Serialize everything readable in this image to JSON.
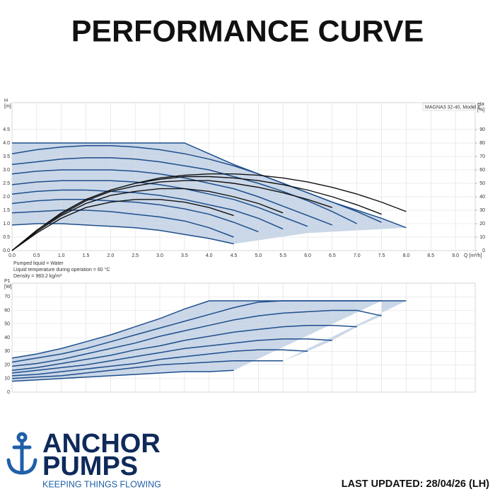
{
  "header": {
    "title": "PERFORMANCE CURVE"
  },
  "logo": {
    "line1": "ANCHOR",
    "line2": "PUMPS",
    "tagline": "KEEPING THINGS FLOWING"
  },
  "footer": {
    "updated": "LAST UPDATED: 28/04/26 (LH)"
  },
  "chart_data": [
    {
      "type": "line",
      "title": "MAGNA3 32-40, Model E",
      "y_label": "H",
      "y_unit": "[m]",
      "y2_label": "eta",
      "y2_unit": "[%]",
      "x_label": "Q [m³/h]",
      "notes": [
        "Pumped liquid = Water",
        "Liquid temperature during operation = 60 °C",
        "Density = 983.2 kg/m³"
      ],
      "xlim": [
        0,
        9.4
      ],
      "xticks": [
        {
          "value": 0,
          "label": "0.0"
        },
        0.5,
        {
          "value": 1,
          "label": "1.0"
        },
        1.5,
        {
          "value": 2,
          "label": "2.0"
        },
        2.5,
        {
          "value": 3,
          "label": "3.0"
        },
        3.5,
        {
          "value": 4,
          "label": "4.0"
        },
        4.5,
        {
          "value": 5,
          "label": "5.0"
        },
        5.5,
        {
          "value": 6,
          "label": "6.0"
        },
        6.5,
        {
          "value": 7,
          "label": "7.0"
        },
        7.5,
        {
          "value": 8,
          "label": "8.0"
        },
        8.5,
        {
          "value": 9,
          "label": "9.0"
        }
      ],
      "ylim": [
        0,
        5.5
      ],
      "yticks": [
        {
          "value": 0,
          "label": "0.0"
        },
        0.5,
        {
          "value": 1,
          "label": "1.0"
        },
        1.5,
        {
          "value": 2,
          "label": "2.0"
        },
        2.5,
        {
          "value": 3,
          "label": "3.0"
        },
        3.5,
        {
          "value": 4,
          "label": "4.0"
        },
        4.5
      ],
      "y2lim": [
        0,
        110
      ],
      "y2ticks": [
        0,
        10,
        20,
        30,
        40,
        50,
        60,
        70,
        80,
        90
      ],
      "grid": true,
      "fill_color": "#c9d7e8",
      "x": [
        0,
        0.5,
        1,
        1.5,
        2,
        2.5,
        3,
        3.5,
        4,
        4.5,
        5,
        5.5,
        6,
        6.5,
        7,
        7.5,
        8
      ],
      "series": [
        {
          "color": "#1f4e8c",
          "values": [
            4.0,
            4.0,
            4.0,
            4.0,
            4.0,
            4.0,
            4.0,
            4.0,
            3.6,
            3.2,
            2.85,
            2.5,
            2.15,
            1.8,
            1.5,
            1.2,
            0.85
          ]
        },
        {
          "color": "#1f4e8c",
          "values": [
            3.6,
            3.75,
            3.85,
            3.9,
            3.9,
            3.85,
            3.75,
            3.6,
            3.4,
            3.15,
            2.85,
            2.5,
            2.15,
            1.8,
            1.45,
            1.05,
            null
          ]
        },
        {
          "color": "#1f4e8c",
          "values": [
            3.2,
            3.3,
            3.4,
            3.45,
            3.45,
            3.4,
            3.3,
            3.15,
            3.0,
            2.75,
            2.5,
            2.2,
            1.85,
            1.45,
            1.0,
            null,
            null
          ]
        },
        {
          "color": "#1f4e8c",
          "values": [
            2.85,
            2.95,
            3.0,
            3.0,
            3.0,
            2.95,
            2.85,
            2.7,
            2.5,
            2.3,
            2.0,
            1.65,
            1.3,
            0.95,
            null,
            null,
            null
          ]
        },
        {
          "color": "#1f4e8c",
          "values": [
            2.45,
            2.55,
            2.6,
            2.6,
            2.6,
            2.55,
            2.45,
            2.3,
            2.1,
            1.9,
            1.6,
            1.25,
            0.9,
            null,
            null,
            null,
            null
          ]
        },
        {
          "color": "#1f4e8c",
          "values": [
            2.1,
            2.2,
            2.25,
            2.25,
            2.2,
            2.15,
            2.05,
            1.9,
            1.7,
            1.5,
            1.2,
            0.8,
            null,
            null,
            null,
            null,
            null
          ]
        },
        {
          "color": "#1f4e8c",
          "values": [
            1.75,
            1.85,
            1.9,
            1.9,
            1.85,
            1.8,
            1.7,
            1.55,
            1.35,
            1.05,
            0.7,
            null,
            null,
            null,
            null,
            null,
            null
          ]
        },
        {
          "color": "#1f4e8c",
          "values": [
            1.4,
            1.45,
            1.5,
            1.5,
            1.45,
            1.35,
            1.25,
            1.1,
            0.85,
            0.5,
            null,
            null,
            null,
            null,
            null,
            null,
            null
          ]
        },
        {
          "color": "#1f4e8c",
          "values": [
            0.95,
            1.0,
            1.0,
            0.95,
            0.9,
            0.85,
            0.75,
            0.6,
            0.45,
            0.25,
            null,
            null,
            null,
            null,
            null,
            null,
            null
          ]
        },
        {
          "color": "#111111",
          "axis": "y2",
          "values": [
            0,
            15,
            28,
            38,
            45,
            50,
            54,
            56,
            57,
            57,
            56,
            54,
            51,
            47,
            42,
            36,
            29
          ]
        },
        {
          "color": "#111111",
          "axis": "y2",
          "values": [
            0,
            15,
            28,
            38,
            45,
            50,
            53,
            55,
            55,
            54,
            52,
            49,
            45,
            40,
            34,
            27,
            null
          ]
        },
        {
          "color": "#111111",
          "axis": "y2",
          "values": [
            0,
            15,
            27,
            37,
            44,
            48,
            51,
            52,
            52,
            50,
            47,
            43,
            38,
            32,
            null,
            null,
            null
          ]
        },
        {
          "color": "#111111",
          "axis": "y2",
          "values": [
            0,
            14,
            26,
            35,
            41,
            44,
            46,
            46,
            44,
            40,
            35,
            28,
            null,
            null,
            null,
            null,
            null
          ]
        },
        {
          "color": "#111111",
          "axis": "y2",
          "values": [
            0,
            13,
            24,
            32,
            36,
            38,
            38,
            36,
            32,
            26,
            null,
            null,
            null,
            null,
            null,
            null,
            null
          ]
        }
      ]
    },
    {
      "type": "line",
      "y_label": "P1",
      "y_unit": "[W]",
      "xlim": [
        0,
        9.4
      ],
      "ylim": [
        0,
        80
      ],
      "yticks": [
        0,
        10,
        20,
        30,
        40,
        50,
        60,
        70
      ],
      "grid": true,
      "fill_color": "#c9d7e8",
      "x": [
        0,
        0.5,
        1,
        1.5,
        2,
        2.5,
        3,
        3.5,
        4,
        4.5,
        5,
        5.5,
        6,
        6.5,
        7,
        7.5,
        8
      ],
      "series": [
        {
          "color": "#1f4e8c",
          "values": [
            25,
            28,
            32,
            37,
            42,
            48,
            54,
            61,
            67,
            67,
            67,
            67,
            67,
            67,
            67,
            67,
            67
          ]
        },
        {
          "color": "#1f4e8c",
          "values": [
            22,
            25,
            28,
            32,
            37,
            42,
            47,
            52,
            57,
            62,
            66,
            67,
            67,
            67,
            67,
            67,
            null
          ]
        },
        {
          "color": "#1f4e8c",
          "values": [
            19,
            21,
            24,
            28,
            32,
            36,
            41,
            45,
            49,
            53,
            56,
            58,
            59,
            60,
            60,
            56,
            null
          ]
        },
        {
          "color": "#1f4e8c",
          "values": [
            16,
            18,
            21,
            24,
            27,
            31,
            34,
            38,
            41,
            44,
            46,
            48,
            49,
            49,
            48,
            null,
            null
          ]
        },
        {
          "color": "#1f4e8c",
          "values": [
            14,
            16,
            18,
            20,
            23,
            26,
            29,
            32,
            34,
            36,
            38,
            39,
            39,
            38,
            null,
            null,
            null
          ]
        },
        {
          "color": "#1f4e8c",
          "values": [
            12,
            13,
            15,
            17,
            19,
            21,
            24,
            26,
            28,
            30,
            31,
            31,
            30,
            null,
            null,
            null,
            null
          ]
        },
        {
          "color": "#1f4e8c",
          "values": [
            10,
            11,
            12,
            14,
            16,
            18,
            20,
            21,
            22,
            23,
            23,
            23,
            null,
            null,
            null,
            null,
            null
          ]
        },
        {
          "color": "#1f4e8c",
          "values": [
            8,
            9,
            10,
            11,
            12,
            13,
            14,
            15,
            15,
            16,
            null,
            null,
            null,
            null,
            null,
            null,
            null
          ]
        }
      ]
    }
  ]
}
